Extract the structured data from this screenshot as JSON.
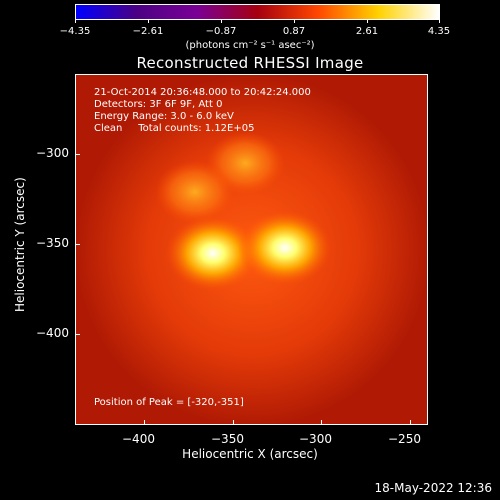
{
  "colorbar": {
    "labels": [
      "−4.35",
      "−2.61",
      "−0.87",
      "0.87",
      "2.61",
      "4.35"
    ],
    "units": "(photons cm⁻² s⁻¹ asec⁻²)",
    "colors": [
      "#0000ff",
      "#4b0084",
      "#7a0095",
      "#a50010",
      "#ff4800",
      "#ffd200",
      "#ffffff"
    ]
  },
  "title": "Reconstructed RHESSI Image",
  "info": {
    "line1": "21-Oct-2014 20:36:48.000 to 20:42:24.000",
    "line2": "Detectors: 3F 6F 9F, Att 0",
    "line3": "Energy Range: 3.0 - 6.0 keV",
    "line4": "Clean     Total counts: 1.12E+05",
    "peak": "Position of Peak = [-320,-351]"
  },
  "axes": {
    "xlabel": "Heliocentric X (arcsec)",
    "ylabel": "Heliocentric Y (arcsec)",
    "xticks": [
      "−400",
      "−350",
      "−300",
      "−250"
    ],
    "yticks": [
      "−300",
      "−350",
      "−400"
    ]
  },
  "timestamp": "18-May-2022 12:36",
  "chart_data": {
    "type": "heatmap",
    "title": "Reconstructed RHESSI Image",
    "xlabel": "Heliocentric X (arcsec)",
    "ylabel": "Heliocentric Y (arcsec)",
    "xlim": [
      -436,
      -240
    ],
    "ylim": [
      -450,
      -255
    ],
    "zlim": [
      -4.35,
      4.35
    ],
    "peak": [
      -320,
      -351
    ],
    "sources": [
      {
        "x": -360,
        "y": -354,
        "intensity": 4.35
      },
      {
        "x": -320,
        "y": -351,
        "intensity": 4.35
      },
      {
        "x": -342,
        "y": -304,
        "intensity": 2.6
      },
      {
        "x": -370,
        "y": -320,
        "intensity": 2.2
      }
    ]
  }
}
